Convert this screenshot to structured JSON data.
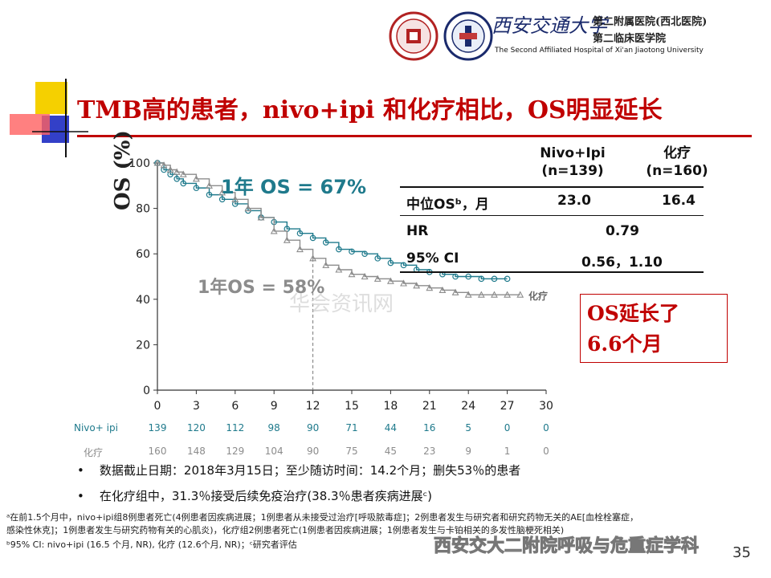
{
  "header": {
    "hospital_cn": "西安交通大学",
    "hospital_line1": "第二附属医院(西北医院)",
    "hospital_line2": "第二临床医学院",
    "hospital_en": "The Second Affiliated Hospital of Xi'an Jiaotong University"
  },
  "slide": {
    "title": "TMB高的患者，nivo+ipi 和化疗相比，OS明显延长",
    "page_number": "35",
    "watermark": "华会资讯网",
    "wechat_label": "西安交大二附院呼吸与危重症学科"
  },
  "annotations": {
    "os_nivo": "1年 OS = 67%",
    "os_chemo": "1年OS = 58%",
    "chemo_curve_label": "化疗",
    "os_extension_line1": "OS延长了",
    "os_extension_line2": "6.6个月"
  },
  "stats_table": {
    "col_nivo_line1": "Nivo+Ipi",
    "col_nivo_line2": "(n=139)",
    "col_chemo_line1": "化疗",
    "col_chemo_line2": "(n=160)",
    "rows": [
      {
        "label": "中位OSᵇ，月",
        "nivo": "23.0",
        "chemo": "16.4"
      },
      {
        "label": "HR",
        "value": "0.79"
      },
      {
        "label": "95% CI",
        "value": "0.56，1.10"
      }
    ]
  },
  "risk_table": {
    "labels": [
      "Nivo+ ipi",
      "化疗"
    ],
    "nivo": [
      "139",
      "120",
      "112",
      "98",
      "90",
      "71",
      "44",
      "16",
      "5",
      "0",
      "0"
    ],
    "chemo": [
      "160",
      "148",
      "129",
      "104",
      "90",
      "75",
      "45",
      "23",
      "9",
      "1",
      "0"
    ]
  },
  "bullets": [
    "数据截止日期：2018年3月15日；至少随访时间：14.2个月；删失53％的患者",
    "在化疗组中，31.3％接受后续免疫治疗(38.3％患者疾病进展ᶜ)"
  ],
  "footnotes": [
    "ᵃ在前1.5个月中，nivo+ipi组8例患者死亡(4例患者因疾病进展；1例患者从未接受过治疗[呼吸脓毒症]；2例患者发生与研究者和研究药物无关的AE[血栓栓塞症，",
    "感染性休克]；1例患者发生与研究药物有关的心肌炎)，化疗组2例患者死亡(1例患者因疾病进展；1例患者发生与卡铂相关的多发性脑梗死相关)",
    "ᵇ95% CI: nivo+ipi (16.5 个月, NR), 化疗 (12.6个月, NR)；ᶜ研究者评估"
  ],
  "chart_data": {
    "type": "line",
    "title": "",
    "xlabel": "",
    "ylabel": "OS (%)",
    "xlim": [
      0,
      30
    ],
    "ylim": [
      0,
      100
    ],
    "xticks": [
      0,
      3,
      6,
      9,
      12,
      15,
      18,
      21,
      24,
      27,
      30
    ],
    "yticks": [
      0,
      20,
      40,
      60,
      80,
      100
    ],
    "grid": false,
    "colors": {
      "nivo": "#1f7a8c",
      "chemo": "#8c8c8c"
    },
    "series": [
      {
        "name": "Nivo+Ipi",
        "x": [
          0,
          0.5,
          1,
          1.5,
          2,
          3,
          4,
          5,
          6,
          7,
          8,
          9,
          10,
          11,
          12,
          13,
          14,
          15,
          16,
          17,
          18,
          19,
          20,
          21,
          22,
          23,
          24,
          25,
          26,
          27
        ],
        "y": [
          100,
          97,
          95,
          93,
          91,
          89,
          86,
          84,
          82,
          79,
          76,
          74,
          71,
          69,
          67,
          65,
          62,
          61,
          60,
          58,
          56,
          55,
          53,
          52,
          51,
          50,
          50,
          49,
          49,
          49
        ]
      },
      {
        "name": "化疗",
        "x": [
          0,
          0.5,
          1,
          1.5,
          2,
          3,
          4,
          5,
          6,
          7,
          8,
          9,
          10,
          11,
          12,
          13,
          14,
          15,
          16,
          17,
          18,
          19,
          20,
          21,
          22,
          23,
          24,
          25,
          26,
          27,
          28
        ],
        "y": [
          100,
          99,
          97,
          96,
          95,
          93,
          90,
          87,
          84,
          80,
          76,
          70,
          66,
          62,
          58,
          55,
          53,
          51,
          50,
          49,
          48,
          47,
          46,
          45,
          44,
          43,
          42,
          42,
          42,
          42,
          42
        ]
      }
    ]
  }
}
